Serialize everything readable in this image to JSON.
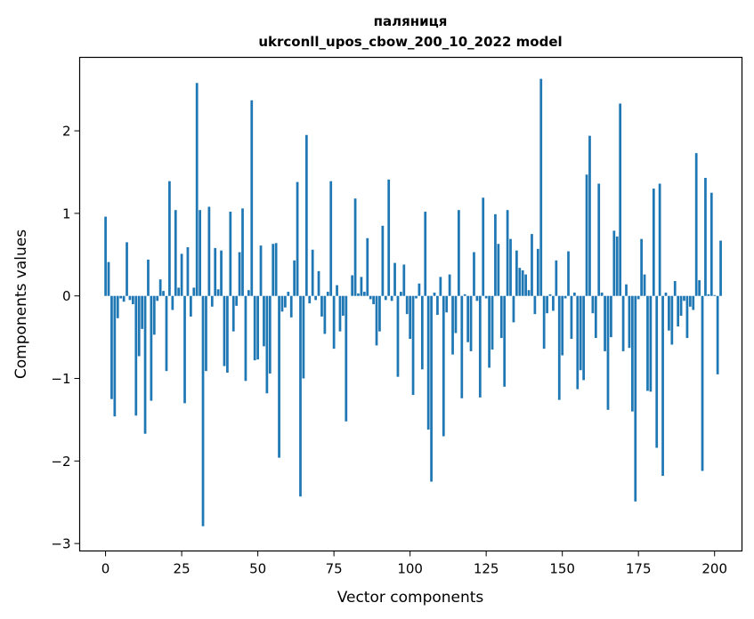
{
  "chart_data": {
    "type": "bar",
    "title": "паляниця",
    "subtitle": "ukrconll_upos_cbow_200_10_2022 model",
    "xlabel": "Vector components",
    "ylabel": "Components values",
    "x_ticks": [
      0,
      25,
      50,
      75,
      100,
      125,
      150,
      175,
      200
    ],
    "x_tick_labels": [
      "0",
      "25",
      "50",
      "75",
      "100",
      "125",
      "150",
      "175",
      "200"
    ],
    "y_ticks": [
      -3,
      -2,
      -1,
      0,
      1,
      2
    ],
    "y_tick_labels": [
      "−3",
      "−2",
      "−1",
      "0",
      "1",
      "2"
    ],
    "xlim": [
      -8.5,
      209
    ],
    "ylim": [
      -3.09,
      2.89
    ],
    "grid": false,
    "bar_color": "#1f77b4",
    "values": [
      0.96,
      0.41,
      -1.25,
      -1.46,
      -0.27,
      -0.03,
      -0.07,
      0.65,
      -0.05,
      -0.1,
      -1.45,
      -0.73,
      -0.4,
      -1.67,
      0.44,
      -1.27,
      -0.47,
      -0.06,
      0.2,
      0.06,
      -0.91,
      1.39,
      -0.17,
      1.04,
      0.1,
      0.51,
      -1.3,
      0.59,
      -0.25,
      0.1,
      2.58,
      1.04,
      -2.79,
      -0.91,
      1.08,
      -0.13,
      0.58,
      0.08,
      0.55,
      -0.85,
      -0.93,
      1.02,
      -0.43,
      -0.12,
      0.53,
      1.06,
      -1.03,
      0.07,
      2.37,
      -0.78,
      -0.77,
      0.61,
      -0.61,
      -1.18,
      -0.94,
      0.63,
      0.64,
      -1.96,
      -0.19,
      -0.14,
      0.05,
      -0.26,
      0.43,
      1.38,
      -2.43,
      -1.0,
      1.95,
      -0.09,
      0.56,
      -0.05,
      0.3,
      -0.25,
      -0.46,
      0.05,
      1.39,
      -0.64,
      0.13,
      -0.43,
      -0.24,
      -1.52,
      0.0,
      0.25,
      1.18,
      0.03,
      0.23,
      0.05,
      0.7,
      -0.04,
      -0.1,
      -0.6,
      -0.43,
      0.85,
      -0.05,
      1.41,
      -0.06,
      0.4,
      -0.98,
      0.05,
      0.38,
      -0.22,
      -0.52,
      -1.2,
      -0.03,
      0.15,
      -0.89,
      1.02,
      -1.62,
      -2.25,
      0.04,
      -0.23,
      0.23,
      -1.7,
      -0.2,
      0.26,
      -0.71,
      -0.45,
      1.04,
      -1.24,
      0.02,
      -0.56,
      -0.67,
      0.53,
      -0.06,
      -1.23,
      1.19,
      -0.03,
      -0.87,
      -0.65,
      0.99,
      0.63,
      -0.51,
      -1.1,
      1.04,
      0.69,
      -0.32,
      0.55,
      0.34,
      0.31,
      0.26,
      0.07,
      0.75,
      -0.22,
      0.57,
      2.63,
      -0.64,
      -0.21,
      0.02,
      -0.18,
      0.43,
      -1.26,
      -0.72,
      -0.03,
      0.54,
      -0.52,
      0.04,
      -1.13,
      -0.9,
      -1.02,
      1.47,
      1.94,
      -0.21,
      -0.51,
      1.36,
      0.04,
      -0.67,
      -1.38,
      -0.5,
      0.79,
      0.72,
      2.33,
      -0.67,
      0.14,
      -0.63,
      -1.4,
      -2.49,
      -0.04,
      0.69,
      0.26,
      -1.15,
      -1.16,
      1.3,
      -1.84,
      1.36,
      -2.18,
      0.04,
      -0.42,
      -0.59,
      0.18,
      -0.37,
      -0.24,
      -0.06,
      -0.51,
      -0.13,
      -0.17,
      1.73,
      0.19,
      -2.12,
      1.43,
      0.02,
      1.25,
      0.01,
      -0.95,
      0.67
    ]
  }
}
